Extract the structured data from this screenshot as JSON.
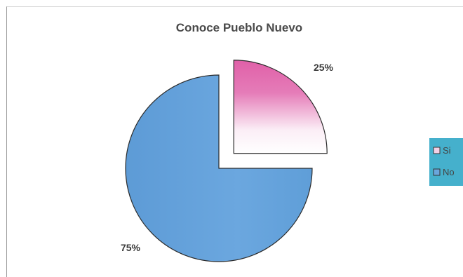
{
  "chart_data": {
    "type": "pie",
    "title": "Conoce Pueblo Nuevo",
    "categories": [
      "Si",
      "No"
    ],
    "values": [
      25,
      75
    ],
    "labels": [
      "25%",
      "75%"
    ],
    "exploded": [
      true,
      false
    ],
    "colors": [
      "#e060a8",
      "#6aa6dc"
    ],
    "legend": {
      "position": "right",
      "background": "#45b0cc",
      "entries": [
        "Si",
        "No"
      ]
    }
  }
}
